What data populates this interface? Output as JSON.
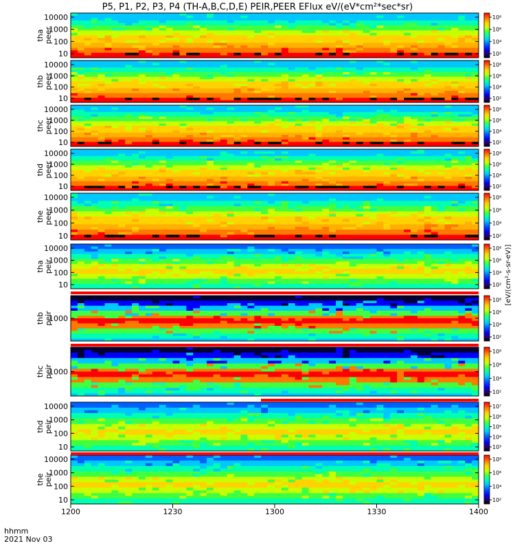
{
  "title": "P5, P1, P2, P3, P4 (TH-A,B,C,D,E) PEIR,PEER EFlux eV/(eV*cm²*sec*sr)",
  "colorbar_unit": "[eV/(cm²-s-sr-eV)]",
  "colors": {
    "spectrum": [
      "#000000",
      "#2a0066",
      "#0000ff",
      "#0060ff",
      "#00c8ff",
      "#00ffb0",
      "#40ff40",
      "#c8ff00",
      "#ffd200",
      "#ff7800",
      "#ff0000"
    ]
  },
  "chart_data": {
    "type": "heatmap",
    "x_axis": {
      "ticks": [
        "1200",
        "1230",
        "1300",
        "1330",
        "1400"
      ],
      "label_line1": "hhmm",
      "label_line2": "2021 Nov 03",
      "range": [
        "12:00",
        "14:00"
      ]
    },
    "panels": [
      {
        "label1": "tha",
        "label2": "peer",
        "yticks": [
          "10000",
          "1000",
          "100",
          "10"
        ],
        "cb_ticks": [
          "10⁸",
          "10⁶",
          "10⁴",
          "10²"
        ],
        "scale": "log"
      },
      {
        "label1": "thb",
        "label2": "peer",
        "yticks": [
          "10000",
          "1000",
          "100",
          "10"
        ],
        "cb_ticks": [
          "10⁸",
          "10⁶",
          "10⁴",
          "10²"
        ],
        "scale": "log"
      },
      {
        "label1": "thc",
        "label2": "peer",
        "yticks": [
          "10000",
          "1000",
          "100",
          "10"
        ],
        "cb_ticks": [
          "10⁸",
          "10⁶",
          "10⁴",
          "10²"
        ],
        "scale": "log"
      },
      {
        "label1": "thd",
        "label2": "peer",
        "yticks": [
          "10000",
          "1000",
          "100",
          "10"
        ],
        "cb_ticks": [
          "10⁸",
          "10⁶",
          "10⁴",
          "10²"
        ],
        "scale": "log"
      },
      {
        "label1": "the",
        "label2": "peer",
        "yticks": [
          "10000",
          "1000",
          "100",
          "10"
        ],
        "cb_ticks": [
          "10⁸",
          "10⁶",
          "10⁴",
          "10²"
        ],
        "scale": "log"
      },
      {
        "label1": "tha",
        "label2": "peir",
        "yticks": [
          "10000",
          "1000",
          "100",
          "10"
        ],
        "cb_ticks": [
          "10⁸",
          "10⁶",
          "10⁴",
          "10²"
        ],
        "scale": "log"
      },
      {
        "label1": "thb",
        "label2": "peir",
        "yticks": [
          "1000"
        ],
        "cb_ticks": [
          "10⁸",
          "10⁶",
          "10⁴",
          "10²"
        ],
        "scale": "log"
      },
      {
        "label1": "thc",
        "label2": "peir",
        "yticks": [
          "1000"
        ],
        "cb_ticks": [
          "10⁸",
          "10⁶",
          "10⁴",
          "10²"
        ],
        "scale": "log"
      },
      {
        "label1": "thd",
        "label2": "peir",
        "yticks": [
          "10000",
          "1000",
          "100",
          "10"
        ],
        "cb_ticks": [
          "10⁷",
          "10⁶",
          "10⁵",
          "10⁴",
          "10³"
        ],
        "scale": "log"
      },
      {
        "label1": "the",
        "label2": "peir",
        "yticks": [
          "10000",
          "1000",
          "100",
          "10"
        ],
        "cb_ticks": [
          "10⁸",
          "10⁶",
          "10⁴",
          "10²"
        ],
        "scale": "log"
      }
    ],
    "grid": false
  }
}
